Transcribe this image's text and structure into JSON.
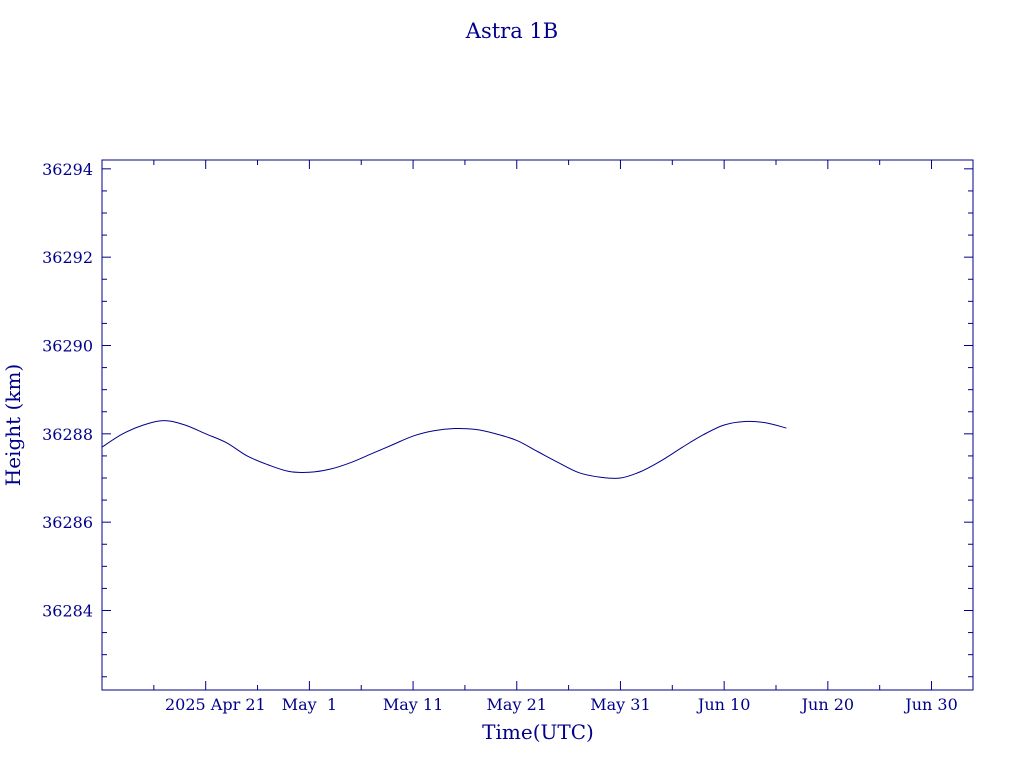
{
  "chart_data": {
    "type": "line",
    "title": "Astra 1B",
    "xlabel": "Time(UTC)",
    "ylabel": "Height (km)",
    "x_ticks": [
      "2025 Apr 21",
      "May  1",
      "May 11",
      "May 21",
      "May 31",
      "Jun 10",
      "Jun 20",
      "Jun 30"
    ],
    "y_ticks": [
      "36284",
      "36286",
      "36288",
      "36290",
      "36292",
      "36294"
    ],
    "xlim": [
      "2025-04-11",
      "2025-07-04"
    ],
    "ylim": [
      36282.2,
      36294.2
    ],
    "color": "#00008b",
    "series": [
      {
        "x": [
          "2025-04-11",
          "2025-04-13",
          "2025-04-15",
          "2025-04-17",
          "2025-04-19",
          "2025-04-21",
          "2025-04-23",
          "2025-04-25",
          "2025-04-27",
          "2025-04-29",
          "2025-05-01",
          "2025-05-03",
          "2025-05-05",
          "2025-05-07",
          "2025-05-09",
          "2025-05-11",
          "2025-05-13",
          "2025-05-15",
          "2025-05-17",
          "2025-05-19",
          "2025-05-21",
          "2025-05-23",
          "2025-05-25",
          "2025-05-27",
          "2025-05-29",
          "2025-05-31",
          "2025-06-02",
          "2025-06-04",
          "2025-06-06",
          "2025-06-08",
          "2025-06-10",
          "2025-06-12",
          "2025-06-14",
          "2025-06-16"
        ],
        "y": [
          36287.7,
          36288.0,
          36288.2,
          36288.3,
          36288.2,
          36288.0,
          36287.8,
          36287.5,
          36287.3,
          36287.15,
          36287.13,
          36287.2,
          36287.35,
          36287.55,
          36287.75,
          36287.95,
          36288.07,
          36288.12,
          36288.1,
          36288.0,
          36287.85,
          36287.6,
          36287.35,
          36287.12,
          36287.02,
          36287.0,
          36287.15,
          36287.4,
          36287.7,
          36287.98,
          36288.2,
          36288.28,
          36288.25,
          36288.13
        ]
      }
    ]
  }
}
